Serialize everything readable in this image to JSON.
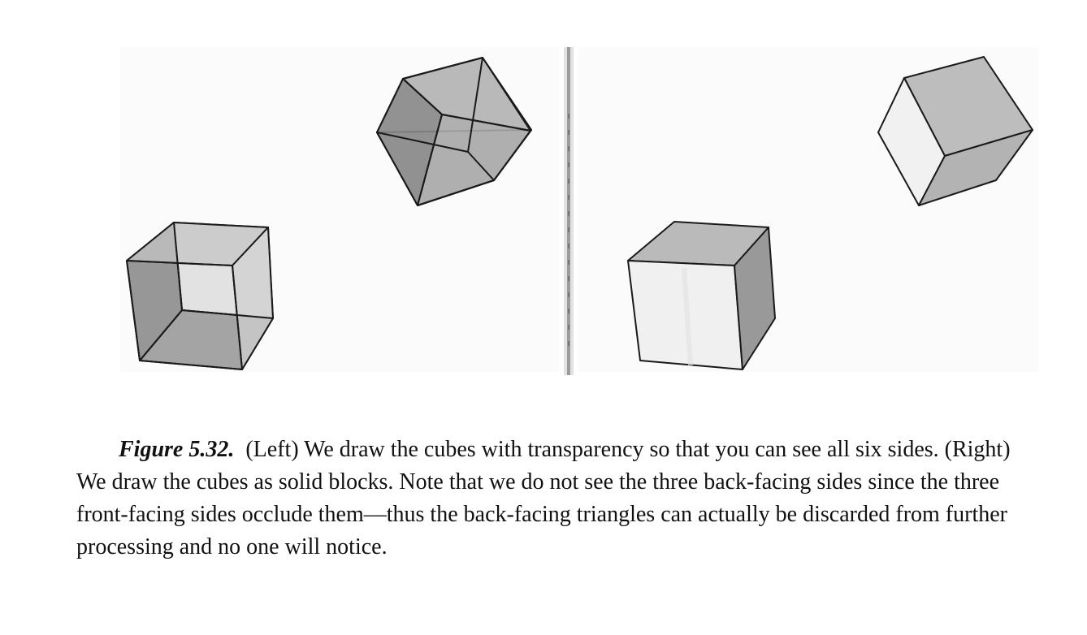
{
  "caption": {
    "label": "Figure 5.32.",
    "text": "(Left) We draw the cubes with transparency so that you can see all six sides. (Right) We draw the cubes as solid blocks. Note that we do not see the three back-facing sides since the three front-facing sides occlude them—thus the back-facing triangles can actually be discarded from further processing and no one will notice."
  },
  "panels": {
    "left": {
      "rendering": "transparent-wireframe",
      "cube_count": 2
    },
    "right": {
      "rendering": "solid-shaded",
      "cube_count": 2
    }
  },
  "colors": {
    "face_dark": "#9a9a9a",
    "face_mid": "#b8b8b8",
    "face_light": "#d6d6d6",
    "face_white": "#f2f2f2",
    "edge": "#1a1a1a"
  }
}
